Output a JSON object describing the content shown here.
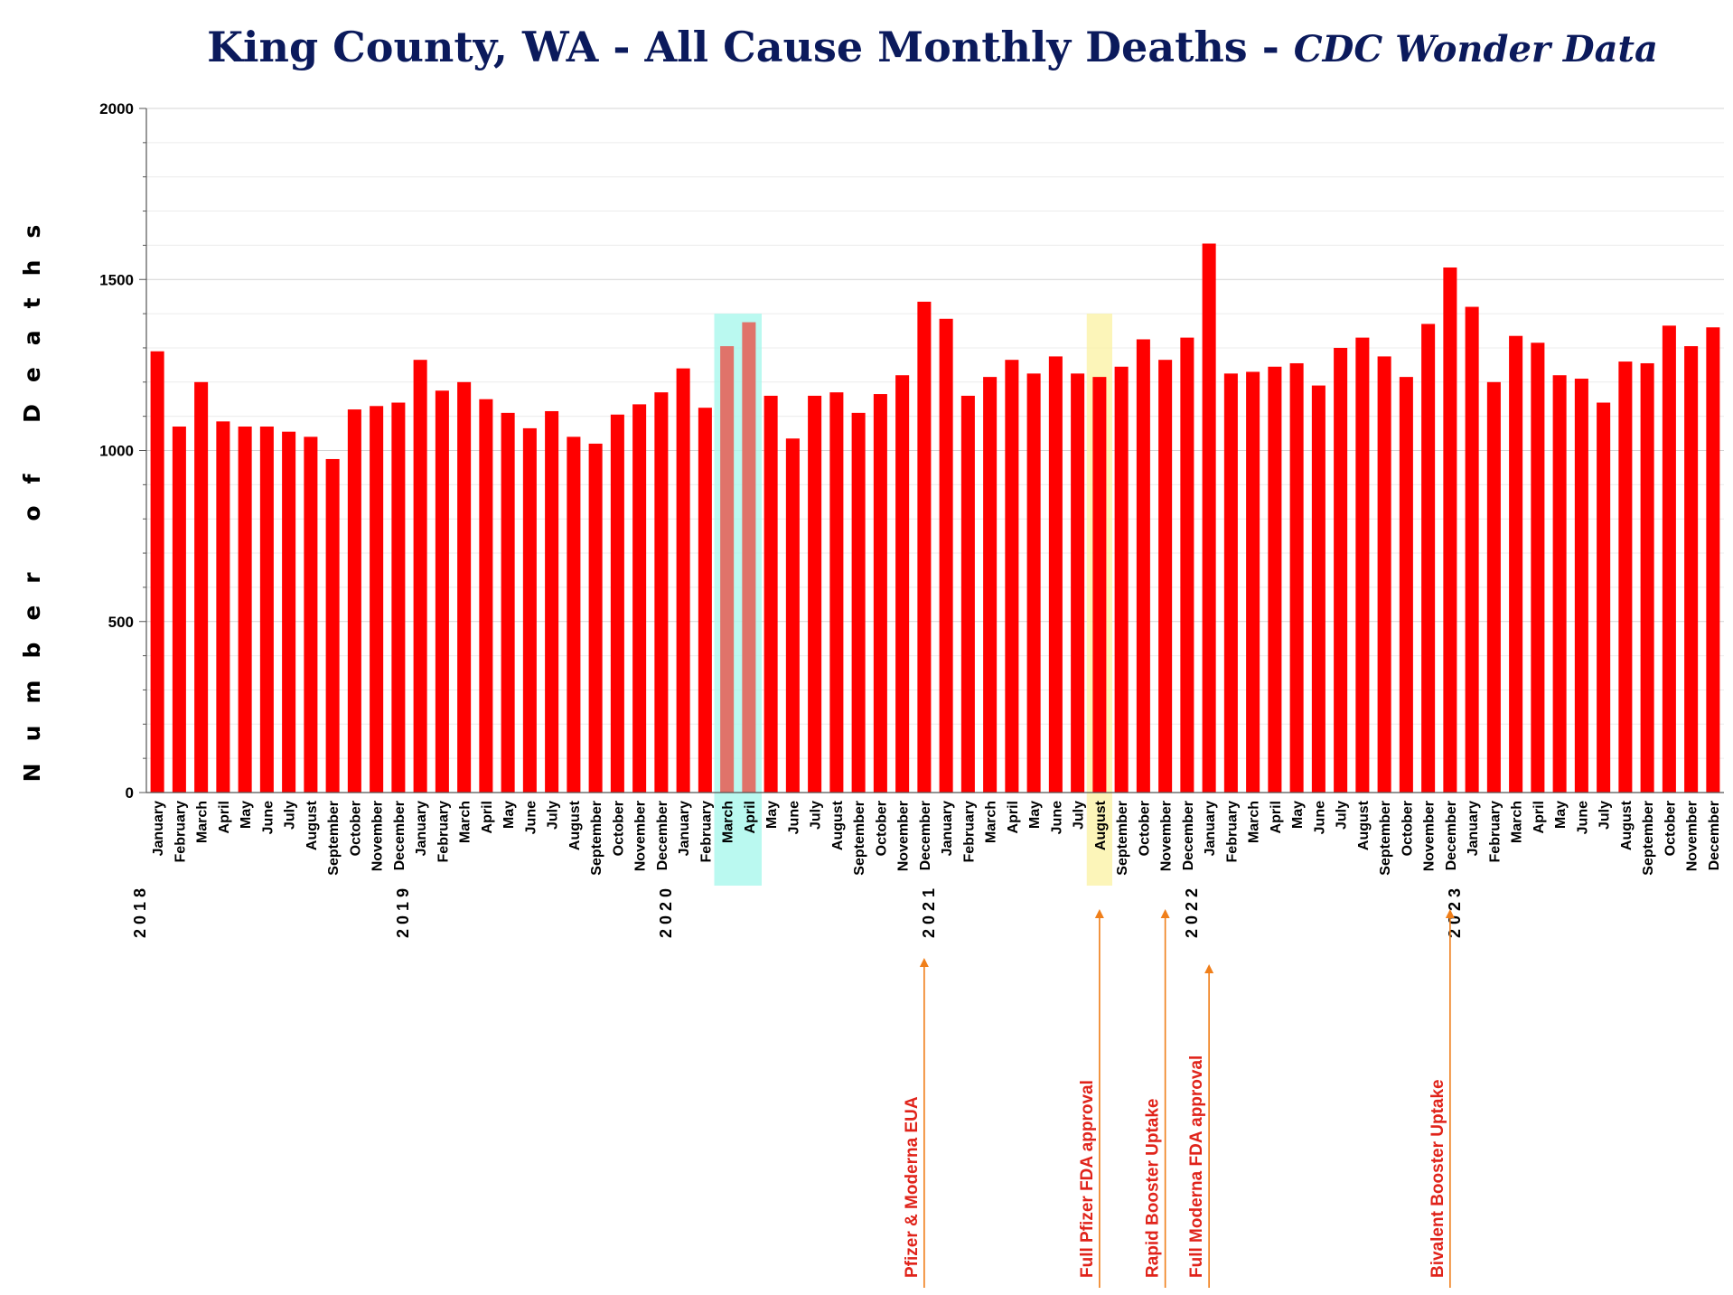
{
  "chart_data": {
    "type": "bar",
    "title": "King County, WA - All Cause Monthly Deaths - ",
    "subtitle": "CDC Wonder Data",
    "ylabel": "Number of Deaths",
    "xlabel": "",
    "ylim": [
      0,
      2000
    ],
    "y_ticks": [
      "0",
      "500",
      "1000",
      "1500",
      "2000"
    ],
    "bar_color": "#ff0000",
    "categories": [
      "January",
      "February",
      "March",
      "April",
      "May",
      "June",
      "July",
      "August",
      "September",
      "October",
      "November",
      "December",
      "January",
      "February",
      "March",
      "April",
      "May",
      "June",
      "July",
      "August",
      "September",
      "October",
      "November",
      "December",
      "January",
      "February",
      "March",
      "April",
      "May",
      "June",
      "July",
      "August",
      "September",
      "October",
      "November",
      "December",
      "January",
      "February",
      "March",
      "April",
      "May",
      "June",
      "July",
      "August",
      "September",
      "October",
      "November",
      "December",
      "January",
      "February",
      "March",
      "April",
      "May",
      "June",
      "July",
      "August",
      "September",
      "October",
      "November",
      "December",
      "January",
      "February",
      "March",
      "April",
      "May",
      "June",
      "July",
      "August",
      "September",
      "October",
      "November",
      "December"
    ],
    "values": [
      1290,
      1070,
      1200,
      1085,
      1070,
      1070,
      1055,
      1040,
      975,
      1120,
      1130,
      1140,
      1265,
      1175,
      1200,
      1150,
      1110,
      1065,
      1115,
      1040,
      1020,
      1105,
      1135,
      1170,
      1240,
      1125,
      1305,
      1375,
      1160,
      1035,
      1160,
      1170,
      1110,
      1165,
      1220,
      1435,
      1385,
      1160,
      1215,
      1265,
      1225,
      1275,
      1225,
      1215,
      1245,
      1325,
      1265,
      1330,
      1605,
      1225,
      1230,
      1245,
      1255,
      1190,
      1300,
      1330,
      1275,
      1215,
      1370,
      1535,
      1420,
      1200,
      1335,
      1315,
      1220,
      1210,
      1140,
      1260,
      1255,
      1365,
      1305,
      1360
    ],
    "years": [
      {
        "label": "2018",
        "index": 0
      },
      {
        "label": "2019",
        "index": 12
      },
      {
        "label": "2020",
        "index": 24
      },
      {
        "label": "2021",
        "index": 36
      },
      {
        "label": "2022",
        "index": 48
      },
      {
        "label": "2023",
        "index": 60
      }
    ],
    "highlights": [
      {
        "from_index": 26,
        "to_index": 27,
        "color": "#a9f7ec"
      },
      {
        "from_index": 43,
        "to_index": 43,
        "color": "#fbf2a8"
      }
    ],
    "annotations": [
      {
        "text": "Pfizer & Moderna EUA",
        "index": 35,
        "color": "#e0231a"
      },
      {
        "text": "Full Pfizer FDA approval",
        "index": 43,
        "color": "#e0231a"
      },
      {
        "text": "Rapid Booster Uptake",
        "index": 46,
        "color": "#e0231a"
      },
      {
        "text": "Full Moderna FDA approval",
        "index": 48,
        "color": "#e0231a"
      },
      {
        "text": "Bivalent Booster Uptake",
        "index": 59,
        "color": "#e0231a"
      }
    ],
    "arrow_color": "#f07f1a"
  }
}
